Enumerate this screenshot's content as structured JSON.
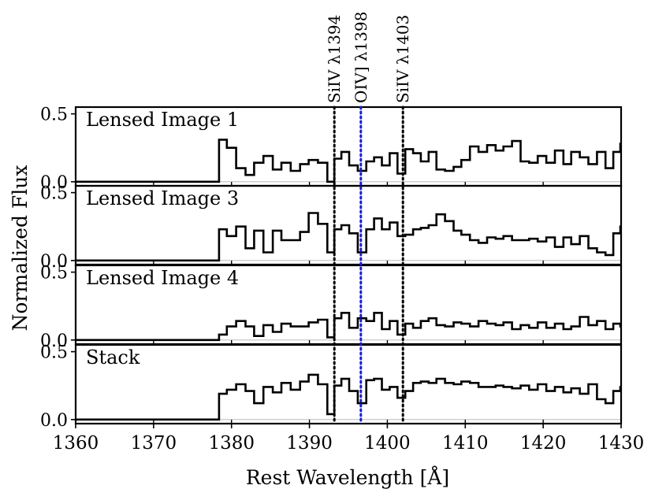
{
  "chart_data": {
    "type": "line",
    "drawstyle": "steps",
    "title": "",
    "xlabel": "Rest Wavelength [Å]",
    "ylabel": "Normalized Flux",
    "xlim": [
      1360,
      1430
    ],
    "ylim": [
      -0.03,
      0.55
    ],
    "x_ticks": [
      1360,
      1370,
      1380,
      1390,
      1400,
      1410,
      1420,
      1430
    ],
    "x_tick_labels": [
      "1360",
      "1370",
      "1380",
      "1390",
      "1400",
      "1410",
      "1420",
      "1430"
    ],
    "y_ticks": [
      0.0,
      0.5
    ],
    "y_tick_labels": [
      "0.0",
      "0.5"
    ],
    "panels": [
      {
        "label": "Lensed Image 1",
        "x": [
          1360,
          1378.4,
          1379.4,
          1380.6,
          1381.8,
          1382.9,
          1384.1,
          1385.3,
          1386.4,
          1387.6,
          1388.8,
          1389.9,
          1391.1,
          1392.3,
          1393.2,
          1394.1,
          1395.1,
          1396.2,
          1397.3,
          1398.3,
          1399.3,
          1400.3,
          1401.3,
          1402.3,
          1403.3,
          1404.3,
          1405.3,
          1406.3,
          1407.4,
          1408.5,
          1409.5,
          1410.6,
          1411.7,
          1412.8,
          1413.9,
          1414.9,
          1416.0,
          1417.1,
          1418.2,
          1419.3,
          1420.4,
          1421.5,
          1422.6,
          1423.6,
          1424.7,
          1425.8,
          1426.9,
          1428.0,
          1429.0,
          1429.9
        ],
        "y": [
          0,
          0.31,
          0.25,
          0.1,
          0.05,
          0.14,
          0.19,
          0.09,
          0.14,
          0.08,
          0.13,
          0.16,
          0.14,
          0.0,
          0.17,
          0.22,
          0.12,
          0.08,
          0.15,
          0.18,
          0.12,
          0.21,
          0.06,
          0.24,
          0.21,
          0.15,
          0.22,
          0.09,
          0.08,
          0.11,
          0.16,
          0.26,
          0.22,
          0.27,
          0.23,
          0.26,
          0.3,
          0.15,
          0.14,
          0.19,
          0.14,
          0.23,
          0.13,
          0.22,
          0.18,
          0.13,
          0.22,
          0.1,
          0.22,
          0.28
        ]
      },
      {
        "label": "Lensed Image 3",
        "x": [
          1360,
          1378.4,
          1379.4,
          1380.6,
          1381.8,
          1382.9,
          1384.1,
          1385.3,
          1386.4,
          1387.6,
          1388.8,
          1389.9,
          1391.1,
          1392.3,
          1393.2,
          1394.1,
          1395.1,
          1396.2,
          1397.3,
          1398.3,
          1399.3,
          1400.3,
          1401.3,
          1402.3,
          1403.3,
          1404.3,
          1405.3,
          1406.3,
          1407.4,
          1408.5,
          1409.5,
          1410.6,
          1411.7,
          1412.8,
          1413.9,
          1414.9,
          1416.0,
          1417.1,
          1418.2,
          1419.3,
          1420.4,
          1421.5,
          1422.6,
          1423.6,
          1424.7,
          1425.8,
          1426.9,
          1428.0,
          1429.0,
          1429.9
        ],
        "y": [
          0,
          0.23,
          0.18,
          0.25,
          0.09,
          0.22,
          0.06,
          0.22,
          0.15,
          0.15,
          0.21,
          0.35,
          0.27,
          0.06,
          0.23,
          0.26,
          0.2,
          0.06,
          0.23,
          0.31,
          0.23,
          0.28,
          0.18,
          0.19,
          0.23,
          0.24,
          0.26,
          0.34,
          0.29,
          0.22,
          0.19,
          0.15,
          0.13,
          0.17,
          0.16,
          0.18,
          0.15,
          0.15,
          0.16,
          0.14,
          0.17,
          0.1,
          0.17,
          0.12,
          0.18,
          0.09,
          0.06,
          0.04,
          0.2,
          0.25
        ]
      },
      {
        "label": "Lensed Image 4",
        "x": [
          1360,
          1378.4,
          1379.4,
          1380.6,
          1381.8,
          1382.9,
          1384.1,
          1385.3,
          1386.4,
          1387.6,
          1388.8,
          1389.9,
          1391.1,
          1392.3,
          1393.2,
          1394.1,
          1395.1,
          1396.2,
          1397.3,
          1398.3,
          1399.3,
          1400.3,
          1401.3,
          1402.3,
          1403.3,
          1404.3,
          1405.3,
          1406.3,
          1407.4,
          1408.5,
          1409.5,
          1410.6,
          1411.7,
          1412.8,
          1413.9,
          1414.9,
          1416.0,
          1417.1,
          1418.2,
          1419.3,
          1420.4,
          1421.5,
          1422.6,
          1423.6,
          1424.7,
          1425.8,
          1426.9,
          1428.0,
          1429.0,
          1429.9
        ],
        "y": [
          0,
          0.04,
          0.1,
          0.14,
          0.1,
          0.03,
          0.11,
          0.06,
          0.12,
          0.1,
          0.1,
          0.13,
          0.15,
          0.02,
          0.16,
          0.2,
          0.09,
          0.16,
          0.14,
          0.2,
          0.08,
          0.14,
          0.04,
          0.12,
          0.09,
          0.14,
          0.16,
          0.11,
          0.1,
          0.13,
          0.12,
          0.1,
          0.14,
          0.12,
          0.11,
          0.13,
          0.08,
          0.11,
          0.09,
          0.13,
          0.09,
          0.12,
          0.08,
          0.1,
          0.17,
          0.11,
          0.14,
          0.08,
          0.12,
          0.1
        ]
      },
      {
        "label": "Stack",
        "x": [
          1360,
          1378.4,
          1379.4,
          1380.6,
          1381.8,
          1382.9,
          1384.1,
          1385.3,
          1386.4,
          1387.6,
          1388.8,
          1389.9,
          1391.1,
          1392.3,
          1393.2,
          1394.1,
          1395.1,
          1396.2,
          1397.3,
          1398.3,
          1399.3,
          1400.3,
          1401.3,
          1402.3,
          1403.3,
          1404.3,
          1405.3,
          1406.3,
          1407.4,
          1408.5,
          1409.5,
          1410.6,
          1411.7,
          1412.8,
          1413.9,
          1414.9,
          1416.0,
          1417.1,
          1418.2,
          1419.3,
          1420.4,
          1421.5,
          1422.6,
          1423.6,
          1424.7,
          1425.8,
          1426.9,
          1428.0,
          1429.0,
          1429.9
        ],
        "y": [
          0,
          0.19,
          0.22,
          0.26,
          0.21,
          0.12,
          0.24,
          0.2,
          0.27,
          0.22,
          0.28,
          0.33,
          0.26,
          0.04,
          0.25,
          0.3,
          0.21,
          0.12,
          0.29,
          0.3,
          0.22,
          0.24,
          0.16,
          0.21,
          0.27,
          0.28,
          0.27,
          0.3,
          0.27,
          0.26,
          0.28,
          0.27,
          0.24,
          0.24,
          0.25,
          0.24,
          0.23,
          0.25,
          0.22,
          0.26,
          0.21,
          0.24,
          0.2,
          0.23,
          0.19,
          0.26,
          0.15,
          0.12,
          0.21,
          0.24
        ]
      }
    ],
    "line_markers": [
      {
        "label": "SiIV λ1394",
        "x": 1393.2,
        "color": "#000000",
        "style": "dotted"
      },
      {
        "label": "OIV] λ1398",
        "x": 1396.6,
        "color": "#1a1ad6",
        "style": "dotted"
      },
      {
        "label": "SiIV λ1403",
        "x": 1402.0,
        "color": "#000000",
        "style": "dotted"
      }
    ],
    "colors": {
      "spectrum": "#000000",
      "zero_line": "#b0b0b0",
      "axes": "#000000"
    }
  }
}
